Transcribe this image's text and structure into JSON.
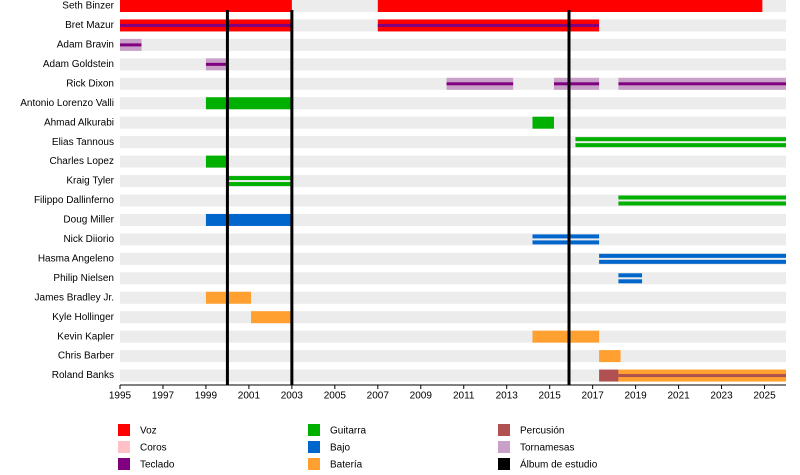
{
  "chart_data": {
    "type": "timeline",
    "xlim": [
      1995,
      2026
    ],
    "xticks": [
      1995,
      1997,
      1999,
      2001,
      2003,
      2005,
      2007,
      2009,
      2011,
      2013,
      2015,
      2017,
      2019,
      2021,
      2023,
      2025
    ],
    "roles": [
      {
        "name": "Voz",
        "color": "#ff0000"
      },
      {
        "name": "Coros",
        "color": "#ffc0c8"
      },
      {
        "name": "Teclado",
        "color": "#800080"
      },
      {
        "name": "Guitarra",
        "color": "#00b000"
      },
      {
        "name": "Bajo",
        "color": "#0066cc"
      },
      {
        "name": "Batería",
        "color": "#ffa030"
      },
      {
        "name": "Percusión",
        "color": "#b05050"
      },
      {
        "name": "Tornamesas",
        "color": "#c8a0c8"
      }
    ],
    "album": {
      "name": "Álbum de estudio",
      "color": "#000000",
      "values": [
        2000,
        2003,
        2015.9
      ]
    },
    "members": [
      {
        "name": "Seth Binzer",
        "bars": [
          {
            "role": 0,
            "start": 1995,
            "end": 2003,
            "style": "full"
          },
          {
            "role": 0,
            "start": 2007,
            "end": 2024.9,
            "style": "full"
          }
        ]
      },
      {
        "name": "Bret Mazur",
        "bars": [
          {
            "role": 0,
            "start": 1995,
            "end": 2003,
            "style": "full"
          },
          {
            "role": 0,
            "start": 2007,
            "end": 2017.3,
            "style": "full"
          },
          {
            "role": 2,
            "start": 1995,
            "end": 2003,
            "style": "thin"
          },
          {
            "role": 2,
            "start": 2007,
            "end": 2017.3,
            "style": "thin"
          }
        ]
      },
      {
        "name": "Adam Bravin",
        "bars": [
          {
            "role": 7,
            "start": 1995,
            "end": 1996,
            "style": "full"
          },
          {
            "role": 2,
            "start": 1995,
            "end": 1996,
            "style": "thin"
          }
        ]
      },
      {
        "name": "Adam Goldstein",
        "bars": [
          {
            "role": 7,
            "start": 1999,
            "end": 2000,
            "style": "full"
          },
          {
            "role": 2,
            "start": 1999,
            "end": 2000,
            "style": "thin"
          }
        ]
      },
      {
        "name": "Rick Dixon",
        "bars": [
          {
            "role": 7,
            "start": 2010.2,
            "end": 2013.3,
            "style": "full"
          },
          {
            "role": 2,
            "start": 2010.2,
            "end": 2013.3,
            "style": "thin"
          },
          {
            "role": 7,
            "start": 2015.2,
            "end": 2017.3,
            "style": "full"
          },
          {
            "role": 2,
            "start": 2015.2,
            "end": 2017.3,
            "style": "thin"
          },
          {
            "role": 7,
            "start": 2018.2,
            "end": 2026,
            "style": "full"
          },
          {
            "role": 2,
            "start": 2018.2,
            "end": 2026,
            "style": "thin"
          }
        ]
      },
      {
        "name": "Antonio Lorenzo Valli",
        "bars": [
          {
            "role": 3,
            "start": 1999,
            "end": 2003,
            "style": "full"
          }
        ]
      },
      {
        "name": "Ahmad Alkurabi",
        "bars": [
          {
            "role": 3,
            "start": 2014.2,
            "end": 2015.2,
            "style": "full"
          }
        ]
      },
      {
        "name": "Elias Tannous",
        "bars": [
          {
            "role": 3,
            "start": 2016.2,
            "end": 2026,
            "style": "double"
          }
        ]
      },
      {
        "name": "Charles Lopez",
        "bars": [
          {
            "role": 3,
            "start": 1999,
            "end": 2000,
            "style": "full"
          }
        ]
      },
      {
        "name": "Kraig Tyler",
        "bars": [
          {
            "role": 3,
            "start": 2000,
            "end": 2003,
            "style": "double"
          }
        ]
      },
      {
        "name": "Filippo Dallinferno",
        "bars": [
          {
            "role": 3,
            "start": 2018.2,
            "end": 2026,
            "style": "double"
          }
        ]
      },
      {
        "name": "Doug Miller",
        "bars": [
          {
            "role": 4,
            "start": 1999,
            "end": 2003,
            "style": "full"
          }
        ]
      },
      {
        "name": "Nick Diiorio",
        "bars": [
          {
            "role": 4,
            "start": 2014.2,
            "end": 2017.3,
            "style": "double"
          }
        ]
      },
      {
        "name": "Hasma Angeleno",
        "bars": [
          {
            "role": 4,
            "start": 2017.3,
            "end": 2026,
            "style": "double"
          }
        ]
      },
      {
        "name": "Philip Nielsen",
        "bars": [
          {
            "role": 4,
            "start": 2018.2,
            "end": 2019.3,
            "style": "double"
          }
        ]
      },
      {
        "name": "James Bradley Jr.",
        "bars": [
          {
            "role": 5,
            "start": 1999,
            "end": 2001.1,
            "style": "full"
          }
        ]
      },
      {
        "name": "Kyle Hollinger",
        "bars": [
          {
            "role": 5,
            "start": 2001.1,
            "end": 2003,
            "style": "full"
          }
        ]
      },
      {
        "name": "Kevin Kapler",
        "bars": [
          {
            "role": 5,
            "start": 2014.2,
            "end": 2017.3,
            "style": "full"
          }
        ]
      },
      {
        "name": "Chris Barber",
        "bars": [
          {
            "role": 5,
            "start": 2017.3,
            "end": 2018.3,
            "style": "full"
          }
        ]
      },
      {
        "name": "Roland Banks",
        "bars": [
          {
            "role": 6,
            "start": 2017.3,
            "end": 2018.2,
            "style": "full"
          },
          {
            "role": 5,
            "start": 2018.2,
            "end": 2026,
            "style": "full"
          },
          {
            "role": 6,
            "start": 2018.2,
            "end": 2026,
            "style": "thin"
          }
        ]
      }
    ]
  }
}
